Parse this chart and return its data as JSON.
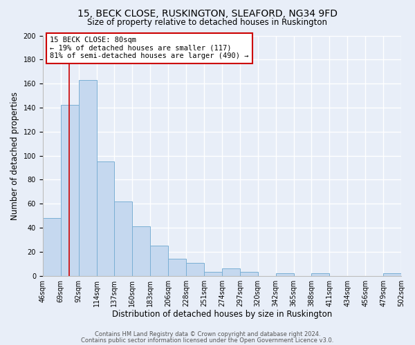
{
  "title": "15, BECK CLOSE, RUSKINGTON, SLEAFORD, NG34 9FD",
  "subtitle": "Size of property relative to detached houses in Ruskington",
  "xlabel": "Distribution of detached houses by size in Ruskington",
  "ylabel": "Number of detached properties",
  "bar_values": [
    48,
    142,
    163,
    95,
    62,
    41,
    25,
    14,
    11,
    3,
    6,
    3,
    0,
    2,
    0,
    2,
    0,
    0,
    0,
    2
  ],
  "bar_labels": [
    "46sqm",
    "69sqm",
    "92sqm",
    "114sqm",
    "137sqm",
    "160sqm",
    "183sqm",
    "206sqm",
    "228sqm",
    "251sqm",
    "274sqm",
    "297sqm",
    "320sqm",
    "342sqm",
    "365sqm",
    "388sqm",
    "411sqm",
    "434sqm",
    "456sqm",
    "479sqm",
    "502sqm"
  ],
  "bar_color": "#c5d8ef",
  "bar_edge_color": "#7aafd4",
  "property_line_x": 80,
  "annotation_title": "15 BECK CLOSE: 80sqm",
  "annotation_line1": "← 19% of detached houses are smaller (117)",
  "annotation_line2": "81% of semi-detached houses are larger (490) →",
  "annotation_box_color": "#ffffff",
  "annotation_box_edge_color": "#cc0000",
  "red_line_color": "#cc0000",
  "ylim": [
    0,
    200
  ],
  "yticks": [
    0,
    20,
    40,
    60,
    80,
    100,
    120,
    140,
    160,
    180,
    200
  ],
  "footer1": "Contains HM Land Registry data © Crown copyright and database right 2024.",
  "footer2": "Contains public sector information licensed under the Open Government Licence v3.0.",
  "background_color": "#e8eef8",
  "plot_bg_color": "#e8eef8",
  "grid_color": "#ffffff",
  "title_fontsize": 10,
  "subtitle_fontsize": 8.5,
  "axis_label_fontsize": 8.5,
  "tick_fontsize": 7,
  "annotation_fontsize": 7.5,
  "footer_fontsize": 6
}
